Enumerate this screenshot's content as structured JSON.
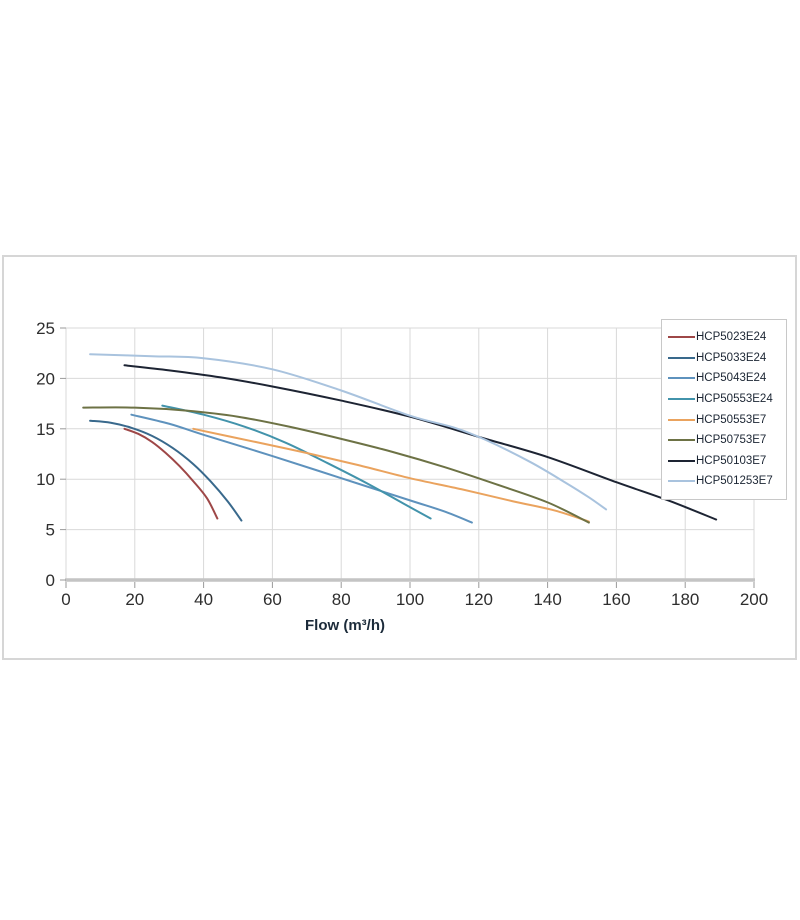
{
  "page": {
    "background": "#ffffff"
  },
  "chart_data": {
    "type": "line",
    "title": "",
    "xlabel": "Flow (m³/h)",
    "ylabel": "",
    "xlim": [
      0,
      200
    ],
    "ylim": [
      0,
      25
    ],
    "x_ticks": [
      0,
      20,
      40,
      60,
      80,
      100,
      120,
      140,
      160,
      180,
      200
    ],
    "y_ticks": [
      0,
      5,
      10,
      15,
      20,
      25
    ],
    "grid": true,
    "legend_position": "top-right",
    "series": [
      {
        "name": "HCP5023E24",
        "color": "#9e4747",
        "points": [
          [
            17,
            15.0
          ],
          [
            21,
            14.5
          ],
          [
            25,
            13.7
          ],
          [
            29,
            12.6
          ],
          [
            33,
            11.3
          ],
          [
            37,
            9.8
          ],
          [
            41,
            8.1
          ],
          [
            44,
            6.1
          ]
        ]
      },
      {
        "name": "HCP5033E24",
        "color": "#39698c",
        "points": [
          [
            7,
            15.8
          ],
          [
            13,
            15.6
          ],
          [
            19,
            15.1
          ],
          [
            25,
            14.3
          ],
          [
            31,
            13.1
          ],
          [
            37,
            11.5
          ],
          [
            42,
            9.8
          ],
          [
            47,
            7.8
          ],
          [
            51,
            5.9
          ]
        ]
      },
      {
        "name": "HCP5043E24",
        "color": "#5e92bd",
        "points": [
          [
            19,
            16.4
          ],
          [
            30,
            15.5
          ],
          [
            40,
            14.4
          ],
          [
            60,
            12.3
          ],
          [
            80,
            10.1
          ],
          [
            100,
            7.9
          ],
          [
            110,
            6.8
          ],
          [
            118,
            5.7
          ]
        ]
      },
      {
        "name": "HCP50553E24",
        "color": "#4293ab",
        "points": [
          [
            28,
            17.3
          ],
          [
            40,
            16.4
          ],
          [
            52,
            15.2
          ],
          [
            64,
            13.6
          ],
          [
            76,
            11.6
          ],
          [
            88,
            9.5
          ],
          [
            98,
            7.6
          ],
          [
            106,
            6.1
          ]
        ]
      },
      {
        "name": "HCP50553E7",
        "color": "#eaa35e",
        "points": [
          [
            37,
            15.0
          ],
          [
            55,
            13.7
          ],
          [
            70,
            12.6
          ],
          [
            85,
            11.4
          ],
          [
            100,
            10.1
          ],
          [
            115,
            9.0
          ],
          [
            130,
            7.8
          ],
          [
            142,
            6.9
          ],
          [
            152,
            5.8
          ]
        ]
      },
      {
        "name": "HCP50753E7",
        "color": "#6d7245",
        "points": [
          [
            5,
            17.1
          ],
          [
            20,
            17.1
          ],
          [
            35,
            16.8
          ],
          [
            50,
            16.2
          ],
          [
            65,
            15.2
          ],
          [
            80,
            14.0
          ],
          [
            95,
            12.7
          ],
          [
            110,
            11.2
          ],
          [
            125,
            9.5
          ],
          [
            140,
            7.7
          ],
          [
            152,
            5.7
          ]
        ]
      },
      {
        "name": "HCP50103E7",
        "color": "#1d2433",
        "points": [
          [
            17,
            21.3
          ],
          [
            30,
            20.8
          ],
          [
            45,
            20.1
          ],
          [
            60,
            19.2
          ],
          [
            80,
            17.8
          ],
          [
            100,
            16.2
          ],
          [
            121,
            14.1
          ],
          [
            140,
            12.2
          ],
          [
            160,
            9.7
          ],
          [
            175,
            7.9
          ],
          [
            189,
            6.0
          ]
        ]
      },
      {
        "name": "HCP501253E7",
        "color": "#a9c3de",
        "points": [
          [
            7,
            22.4
          ],
          [
            25,
            22.2
          ],
          [
            40,
            22.0
          ],
          [
            60,
            20.9
          ],
          [
            80,
            18.8
          ],
          [
            100,
            16.3
          ],
          [
            113,
            15.1
          ],
          [
            122,
            13.9
          ],
          [
            135,
            11.7
          ],
          [
            145,
            9.7
          ],
          [
            152,
            8.2
          ],
          [
            157,
            7.0
          ]
        ]
      }
    ],
    "colors": {
      "gridline": "#d9d9d9",
      "axis_line": "#c4c4c4",
      "tick_mark": "#9a9a9a",
      "tick_label": "#2e2e2e",
      "axis_title": "#1c2b3a",
      "legend_border": "#c8c8c8",
      "legend_text": "#1b2533",
      "frame_border": "#d6d6d6"
    }
  }
}
